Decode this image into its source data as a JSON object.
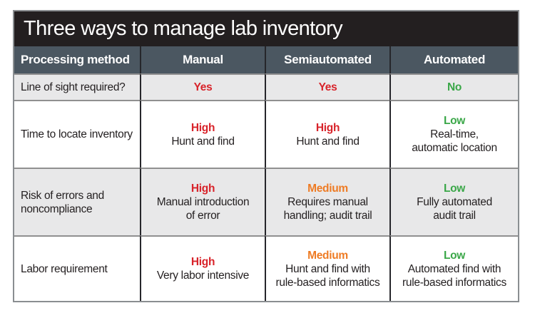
{
  "title": "Three ways to manage lab inventory",
  "colors": {
    "title-bg": "#231f20",
    "header-bg": "#4b5761",
    "header-text": "#ffffff",
    "row-bg": "#ffffff",
    "row-shaded-bg": "#e8e8e9",
    "text": "#231f20",
    "red": "#d8232a",
    "orange": "#ee7b24",
    "green": "#3aa748",
    "border-outer": "#8a8e91",
    "border-vertical": "#26262b",
    "border-horizontal": "#909090"
  },
  "table": {
    "header": [
      "Processing method",
      "Manual",
      "Semiautomated",
      "Automated"
    ],
    "rows": [
      {
        "label": "Line of sight required?",
        "shaded": true,
        "cells": [
          {
            "level": "Yes",
            "color": "red"
          },
          {
            "level": "Yes",
            "color": "red"
          },
          {
            "level": "No",
            "color": "green"
          }
        ]
      },
      {
        "label": "Time to locate inventory",
        "shaded": false,
        "cells": [
          {
            "level": "High",
            "color": "red",
            "detail": "Hunt and find"
          },
          {
            "level": "High",
            "color": "red",
            "detail": "Hunt and find"
          },
          {
            "level": "Low",
            "color": "green",
            "detail": "Real-time,\nautomatic location"
          }
        ]
      },
      {
        "label": "Risk of errors and noncompliance",
        "shaded": true,
        "cells": [
          {
            "level": "High",
            "color": "red",
            "detail": "Manual introduction\nof error"
          },
          {
            "level": "Medium",
            "color": "orange",
            "detail": "Requires manual\nhandling; audit trail"
          },
          {
            "level": "Low",
            "color": "green",
            "detail": "Fully automated\naudit trail"
          }
        ]
      },
      {
        "label": "Labor requirement",
        "shaded": false,
        "cells": [
          {
            "level": "High",
            "color": "red",
            "detail": "Very labor intensive"
          },
          {
            "level": "Medium",
            "color": "orange",
            "detail": "Hunt and find with\nrule-based informatics"
          },
          {
            "level": "Low",
            "color": "green",
            "detail": "Automated find with\nrule-based informatics"
          }
        ]
      }
    ]
  },
  "chart_data": {
    "type": "table",
    "title": "Three ways to manage lab inventory",
    "columns": [
      "Processing method",
      "Manual",
      "Semiautomated",
      "Automated"
    ],
    "rows": [
      [
        "Line of sight required?",
        "Yes",
        "Yes",
        "No"
      ],
      [
        "Time to locate inventory",
        "High - Hunt and find",
        "High - Hunt and find",
        "Low - Real-time, automatic location"
      ],
      [
        "Risk of errors and noncompliance",
        "High - Manual introduction of error",
        "Medium - Requires manual handling; audit trail",
        "Low - Fully automated audit trail"
      ],
      [
        "Labor requirement",
        "High - Very labor intensive",
        "Medium - Hunt and find with rule-based informatics",
        "Low - Automated find with rule-based informatics"
      ]
    ],
    "rating_colors": {
      "High": "#d8232a",
      "Yes": "#d8232a",
      "Medium": "#ee7b24",
      "Low": "#3aa748",
      "No": "#3aa748"
    }
  }
}
